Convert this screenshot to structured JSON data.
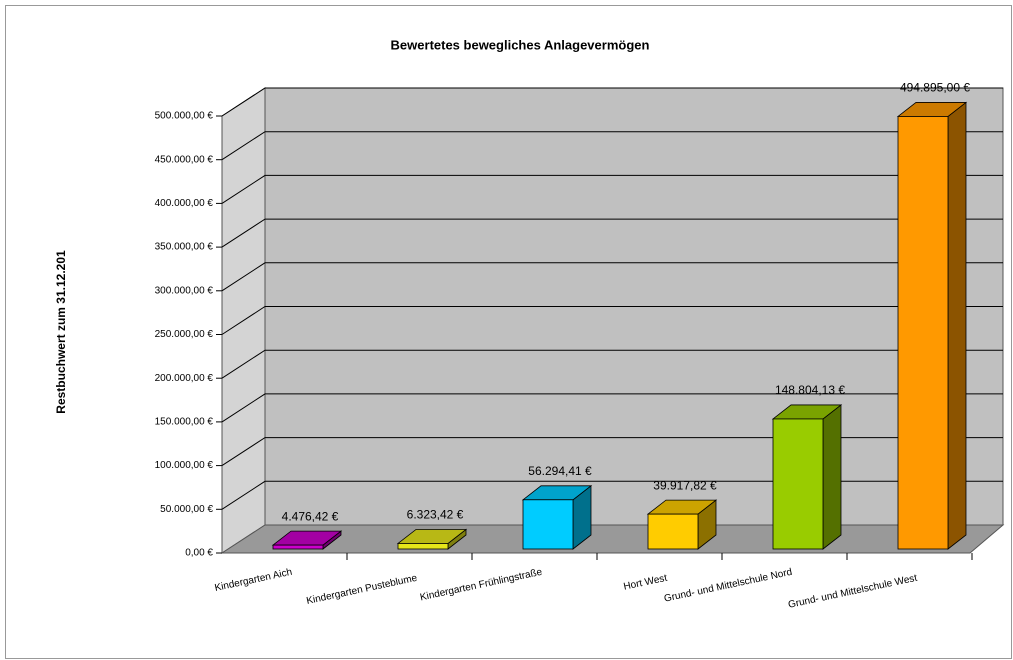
{
  "chart_data": {
    "type": "bar3d",
    "title": "Bewertetes bewegliches Anlagevermögen",
    "y_label": "Restbuchwert zum 31.12.201",
    "categories": [
      "Kindergarten Aich",
      "Kindergarten Pusteblume",
      "Kindergarten Frühlingstraße",
      "Hort West",
      "Grund- und Mittelschule Nord",
      "Grund- und Mittelschule West"
    ],
    "values": [
      4476.42,
      6323.42,
      56294.41,
      39917.82,
      148804.13,
      494895.0
    ],
    "value_labels": [
      "4.476,42 €",
      "6.323,42 €",
      "56.294,41 €",
      "39.917,82 €",
      "148.804,13 €",
      "494.895,00 €"
    ],
    "colors": [
      "#cc00cc",
      "#e6e61a",
      "#00ccff",
      "#ffcc00",
      "#99cc00",
      "#ff9900"
    ],
    "ylim": [
      0,
      500000
    ],
    "yticks": [
      {
        "value": 0,
        "label": "0,00 €"
      },
      {
        "value": 50000,
        "label": "50.000,00 €"
      },
      {
        "value": 100000,
        "label": "100.000,00 €"
      },
      {
        "value": 150000,
        "label": "150.000,00 €"
      },
      {
        "value": 200000,
        "label": "200.000,00 €"
      },
      {
        "value": 250000,
        "label": "250.000,00 €"
      },
      {
        "value": 300000,
        "label": "300.000,00 €"
      },
      {
        "value": 350000,
        "label": "350.000,00 €"
      },
      {
        "value": 400000,
        "label": "400.000,00 €"
      },
      {
        "value": 450000,
        "label": "450.000,00 €"
      },
      {
        "value": 500000,
        "label": "500.000,00 €"
      }
    ],
    "grid": true
  }
}
